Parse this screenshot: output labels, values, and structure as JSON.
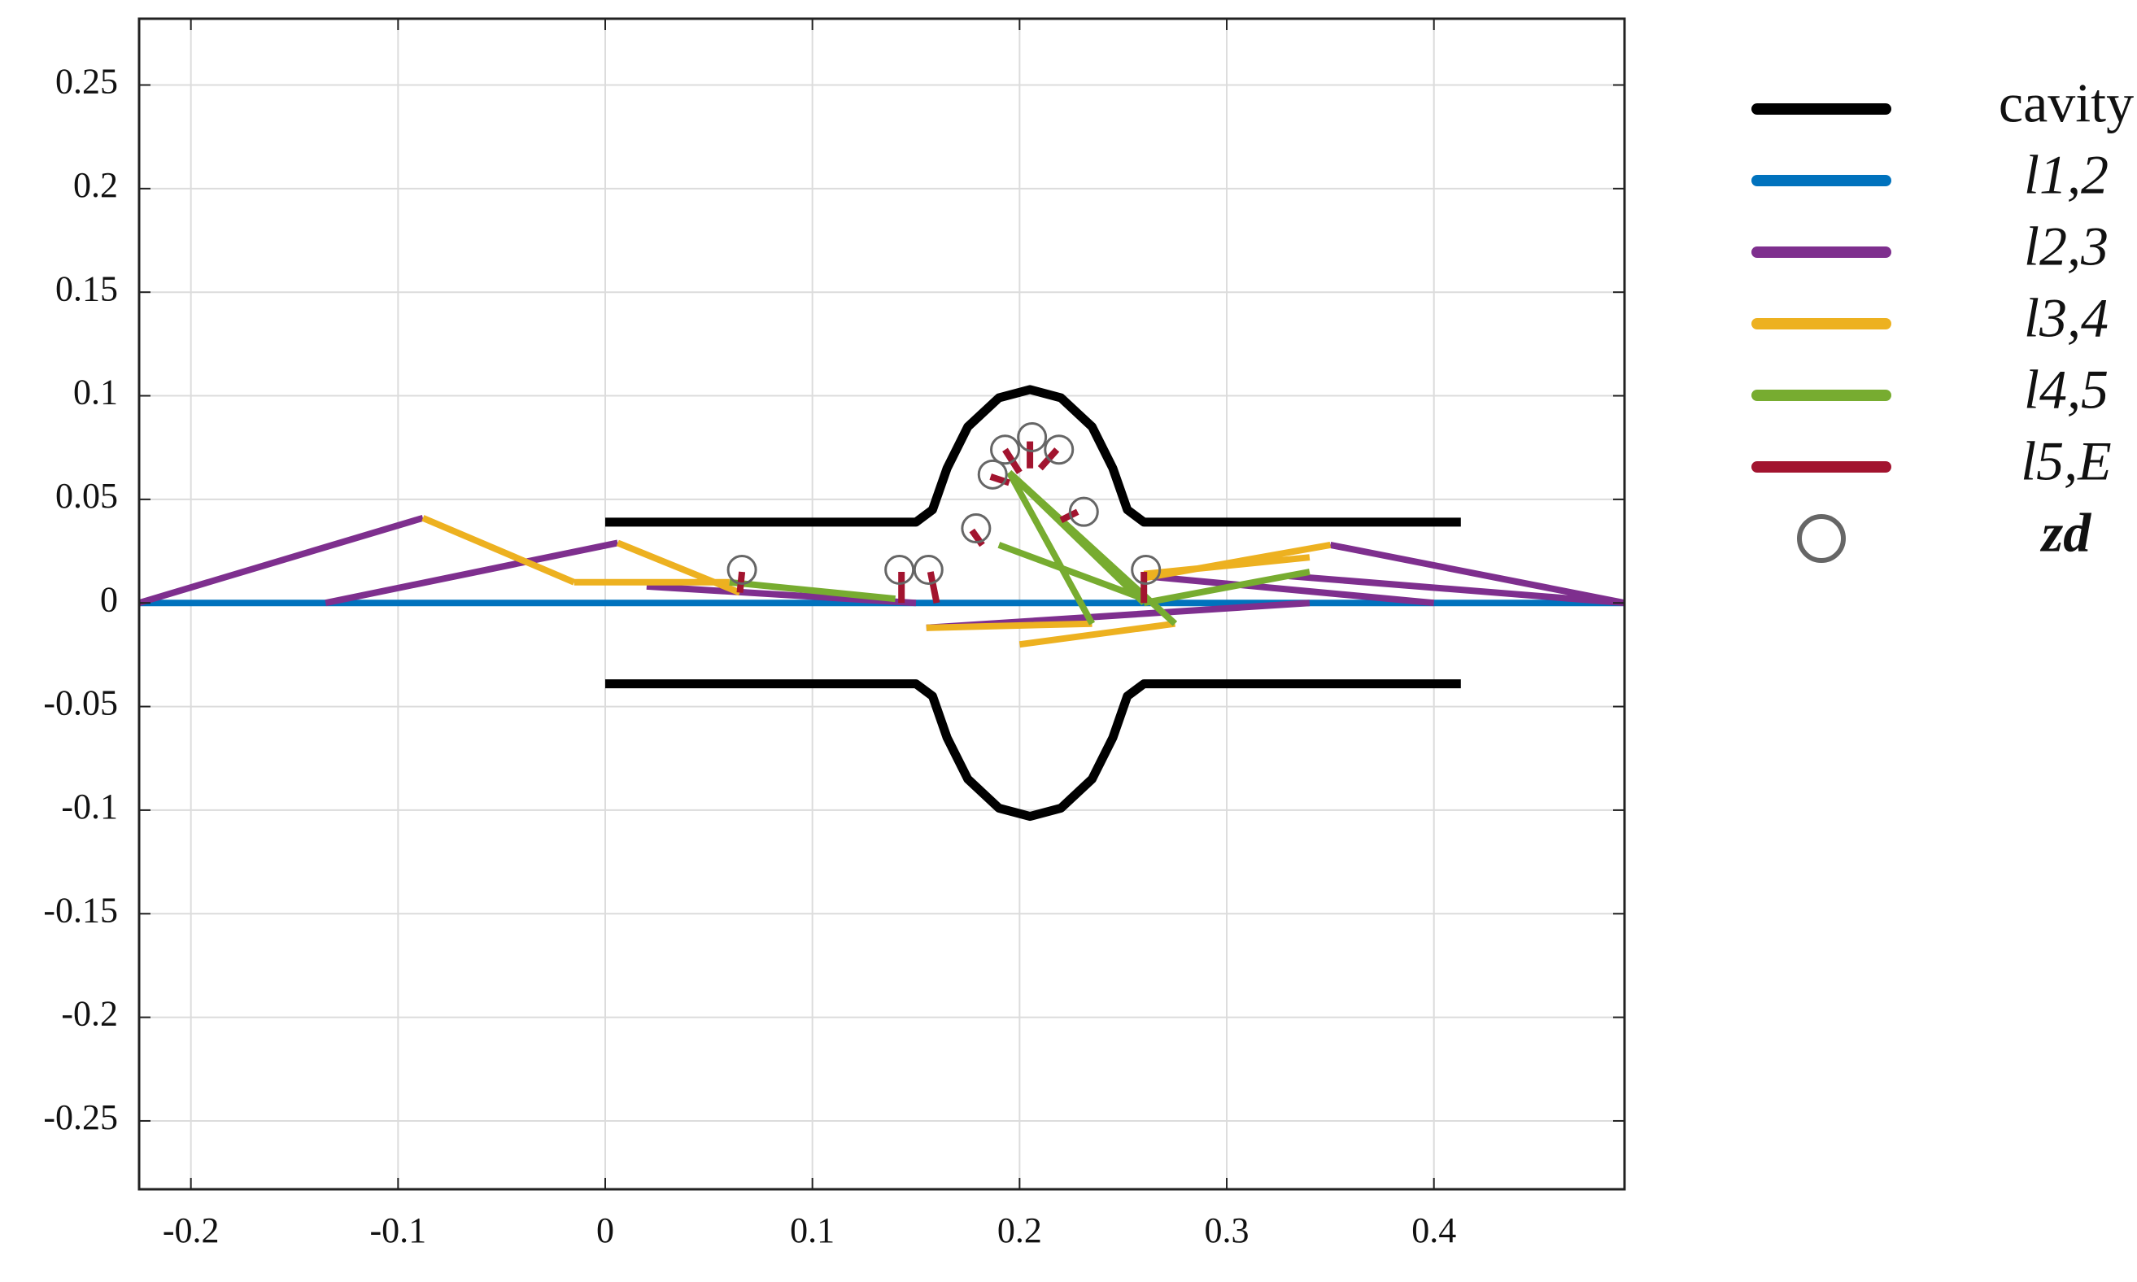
{
  "chart_data": {
    "type": "line",
    "xlim": [
      -0.225,
      0.492
    ],
    "ylim": [
      -0.283,
      0.282
    ],
    "xticks": [
      -0.2,
      -0.1,
      0,
      0.1,
      0.2,
      0.3,
      0.4
    ],
    "yticks": [
      -0.25,
      -0.2,
      -0.15,
      -0.1,
      -0.05,
      0,
      0.05,
      0.1,
      0.15,
      0.2,
      0.25
    ],
    "grid": true,
    "legend": "outside right",
    "series": [
      {
        "name": "cavity",
        "color": "#000000",
        "x": [
          0,
          0.15,
          0.158,
          0.165,
          0.175,
          0.19,
          0.205,
          0.22,
          0.235,
          0.245,
          0.252,
          0.26,
          0.413,
          null,
          0,
          0.15,
          0.158,
          0.165,
          0.175,
          0.19,
          0.205,
          0.22,
          0.235,
          0.245,
          0.252,
          0.26,
          0.413
        ],
        "values": [
          0.039,
          0.039,
          0.045,
          0.065,
          0.085,
          0.099,
          0.103,
          0.099,
          0.085,
          0.065,
          0.045,
          0.039,
          0.039,
          null,
          -0.039,
          -0.039,
          -0.045,
          -0.065,
          -0.085,
          -0.099,
          -0.103,
          -0.099,
          -0.085,
          -0.065,
          -0.045,
          -0.039,
          -0.039
        ]
      },
      {
        "name": "l1,2",
        "color": "#0072bd",
        "x": [
          -0.225,
          0.492
        ],
        "values": [
          0,
          0
        ]
      },
      {
        "name": "l2,3",
        "color": "#7e2f8e",
        "x": [
          -0.225,
          -0.088,
          null,
          -0.135,
          0.006,
          null,
          0.492,
          0.35,
          null,
          0.4,
          0.26,
          null,
          0.34,
          0.155,
          null,
          0.02,
          0.15,
          null,
          0.492,
          0.33
        ],
        "values": [
          0,
          0.041,
          null,
          0,
          0.029,
          null,
          0,
          0.028,
          null,
          0,
          0.013,
          null,
          0,
          -0.012,
          null,
          0.008,
          0,
          null,
          0,
          0.013
        ]
      },
      {
        "name": "l3,4",
        "color": "#edb120",
        "x": [
          -0.088,
          -0.015,
          null,
          0.006,
          0.065,
          null,
          -0.015,
          0.06,
          null,
          0.35,
          0.26,
          null,
          0.34,
          0.26,
          null,
          0.155,
          0.235,
          null,
          0.2,
          0.275
        ],
        "values": [
          0.041,
          0.01,
          null,
          0.029,
          0.005,
          null,
          0.01,
          0.01,
          null,
          0.028,
          0.012,
          null,
          0.022,
          0.014,
          null,
          -0.012,
          -0.01,
          null,
          -0.02,
          -0.01
        ]
      },
      {
        "name": "l4,5",
        "color": "#77ac30",
        "x": [
          0.06,
          0.14,
          null,
          0.195,
          0.235,
          null,
          0.195,
          0.275,
          null,
          0.195,
          0.26,
          null,
          0.19,
          0.26,
          null,
          0.26,
          0.34
        ],
        "values": [
          0.01,
          0.002,
          null,
          0.063,
          -0.01,
          null,
          0.063,
          -0.01,
          null,
          0.063,
          0,
          null,
          0.028,
          0.002,
          null,
          0,
          0.015
        ]
      },
      {
        "name": "l5,E",
        "color": "#a2142f",
        "x": [
          0.065,
          0.066,
          null,
          0.143,
          0.143,
          null,
          0.16,
          0.157,
          null,
          0.182,
          0.177,
          null,
          0.195,
          0.186,
          null,
          0.2,
          0.193,
          null,
          0.205,
          0.205,
          null,
          0.21,
          0.218,
          null,
          0.22,
          0.228,
          null,
          0.26,
          0.26
        ],
        "values": [
          0.005,
          0.015,
          null,
          0,
          0.015,
          null,
          0,
          0.015,
          null,
          0.028,
          0.035,
          null,
          0.058,
          0.061,
          null,
          0.063,
          0.074,
          null,
          0.065,
          0.078,
          null,
          0.065,
          0.074,
          null,
          0.04,
          0.044,
          null,
          0,
          0.015
        ]
      },
      {
        "name": "zd",
        "color": "#666666",
        "marker": "circle",
        "line": false,
        "x": [
          0.066,
          0.142,
          0.156,
          0.179,
          0.187,
          0.193,
          0.206,
          0.219,
          0.231,
          0.261
        ],
        "values": [
          0.016,
          0.016,
          0.016,
          0.036,
          0.062,
          0.074,
          0.08,
          0.074,
          0.044,
          0.016
        ]
      }
    ]
  }
}
